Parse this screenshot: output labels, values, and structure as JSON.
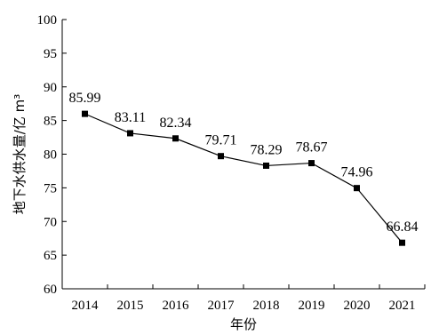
{
  "chart_data": {
    "type": "line",
    "categories": [
      "2014",
      "2015",
      "2016",
      "2017",
      "2018",
      "2019",
      "2020",
      "2021"
    ],
    "values": [
      85.99,
      83.11,
      82.34,
      79.71,
      78.29,
      78.67,
      74.96,
      66.84
    ],
    "data_labels": [
      "85.99",
      "83.11",
      "82.34",
      "79.71",
      "78.29",
      "78.67",
      "74.96",
      "66.84"
    ],
    "xlabel": "年份",
    "ylabel": "地下水供水量/亿 m³",
    "ylim": [
      60,
      100
    ],
    "yticks": [
      60,
      65,
      70,
      75,
      80,
      85,
      90,
      95,
      100
    ],
    "grid": false,
    "marker": "square",
    "line_color": "#000000"
  }
}
